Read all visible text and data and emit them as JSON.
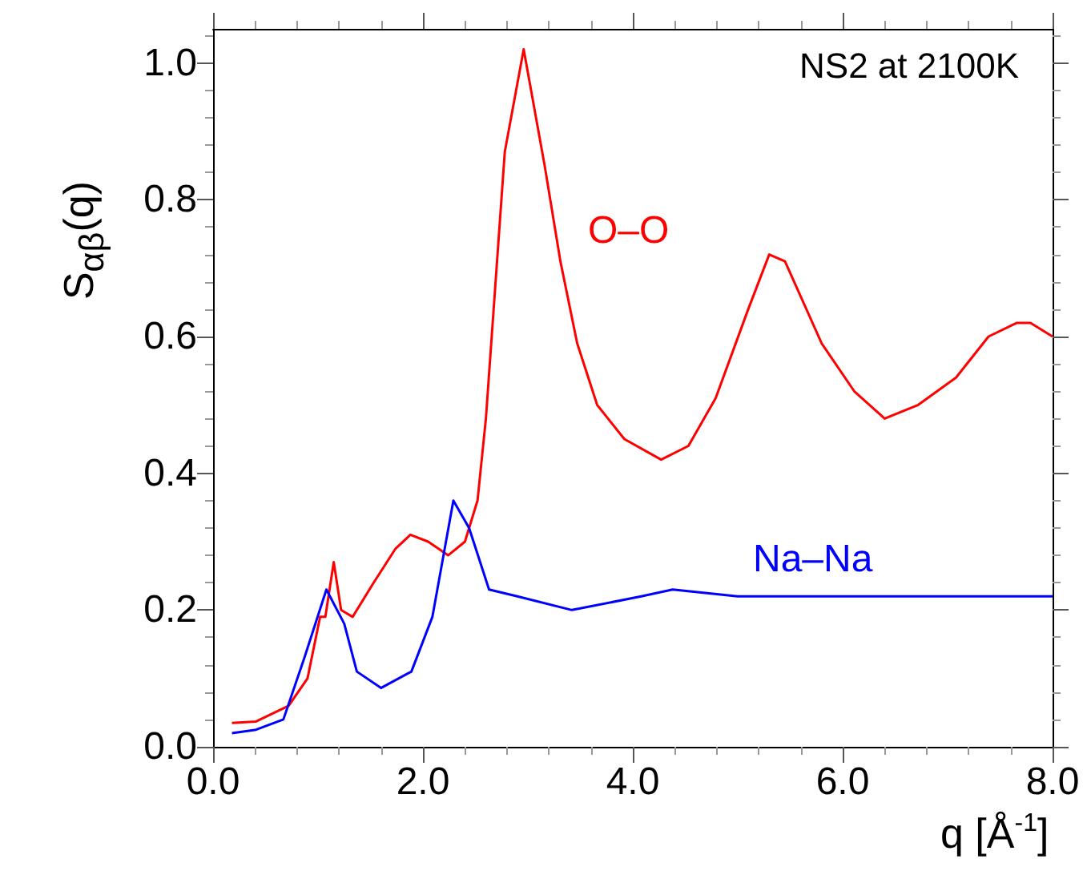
{
  "chart_data": {
    "type": "line",
    "xlabel": "q [Å$^{-1}$]",
    "ylabel": "S$_{αβ}$(q)",
    "xlim": [
      0,
      8
    ],
    "ylim": [
      0,
      1.05
    ],
    "xticks": [
      {
        "value": 0,
        "label": "0.0"
      },
      {
        "value": 2,
        "label": "2.0"
      },
      {
        "value": 4,
        "label": "4.0"
      },
      {
        "value": 6,
        "label": "6.0"
      },
      {
        "value": 8,
        "label": "8.0"
      }
    ],
    "yticks": [
      {
        "value": 0,
        "label": "0.0"
      },
      {
        "value": 0.2,
        "label": "0.2"
      },
      {
        "value": 0.4,
        "label": "0.4"
      },
      {
        "value": 0.6,
        "label": "0.6"
      },
      {
        "value": 0.8,
        "label": "0.8"
      },
      {
        "value": 1,
        "label": "1.0"
      }
    ],
    "grid": false,
    "marker": "none",
    "line_style": "solid",
    "annotations": [
      "NS2 at 2100K"
    ],
    "series": [
      {
        "name": "O–O",
        "color": "#ff0000",
        "x": [
          0.18,
          0.41,
          0.72,
          0.9,
          1.02,
          1.07,
          1.15,
          1.22,
          1.33,
          1.53,
          1.74,
          1.88,
          2.05,
          2.24,
          2.4,
          2.52,
          2.6,
          2.78,
          2.96,
          3.16,
          3.31,
          3.47,
          3.66,
          3.92,
          4.27,
          4.53,
          4.79,
          5.1,
          5.3,
          5.45,
          5.8,
          6.11,
          6.4,
          6.72,
          7.08,
          7.39,
          7.66,
          7.79,
          8.0
        ],
        "values": [
          0.035,
          0.037,
          0.06,
          0.1,
          0.19,
          0.19,
          0.27,
          0.2,
          0.19,
          0.24,
          0.29,
          0.31,
          0.3,
          0.28,
          0.3,
          0.36,
          0.48,
          0.87,
          1.02,
          0.85,
          0.71,
          0.59,
          0.5,
          0.45,
          0.42,
          0.44,
          0.51,
          0.64,
          0.72,
          0.71,
          0.59,
          0.52,
          0.48,
          0.5,
          0.54,
          0.6,
          0.62,
          0.62,
          0.6
        ]
      },
      {
        "name": "Na–Na",
        "color": "#0000ff",
        "x": [
          0.18,
          0.41,
          0.67,
          0.87,
          1.08,
          1.25,
          1.37,
          1.6,
          1.89,
          2.09,
          2.29,
          2.44,
          2.63,
          2.9,
          3.42,
          4.08,
          4.38,
          5.0,
          6.0,
          7.0,
          8.0
        ],
        "values": [
          0.02,
          0.025,
          0.04,
          0.13,
          0.23,
          0.18,
          0.11,
          0.086,
          0.11,
          0.19,
          0.36,
          0.32,
          0.23,
          0.22,
          0.2,
          0.22,
          0.23,
          0.22,
          0.22,
          0.22,
          0.22
        ]
      }
    ]
  }
}
